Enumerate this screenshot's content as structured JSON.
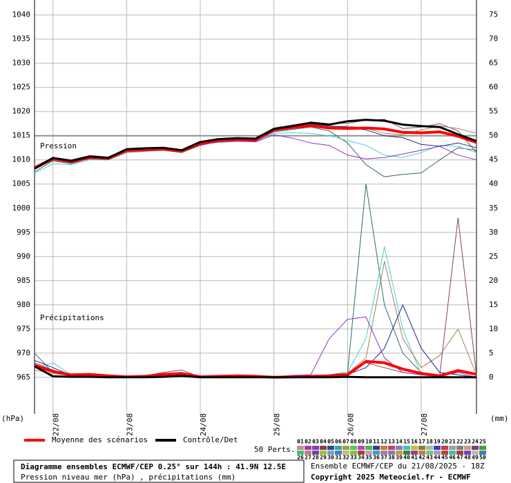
{
  "chart_data": {
    "type": "line",
    "title": "Diagramme ensembles ECMWF/CEP 0.25° sur 144h : 41.9N 12.5E",
    "subtitle": "Pression niveau mer (hPa) , précipitations (mm)",
    "run_label": "Ensemble ECMWF/CEP du 21/08/2025 - 18Z",
    "copyright": "Copyright 2025 Meteociel.fr - ECMWF",
    "ylabel": "(hPa)",
    "y2label": "(mm)",
    "annotations": [
      "Pression",
      "Précipitations"
    ],
    "perts_label": "50 Perts.",
    "grid": true,
    "reference_line": 1015,
    "x": [
      0,
      6,
      12,
      18,
      24,
      30,
      36,
      42,
      48,
      54,
      60,
      66,
      72,
      78,
      84,
      90,
      96,
      102,
      108,
      114,
      120,
      126,
      132,
      138,
      144
    ],
    "xlim": [
      0,
      144
    ],
    "xticks": [
      {
        "value": 6,
        "label": "22/08"
      },
      {
        "value": 30,
        "label": "23/08"
      },
      {
        "value": 54,
        "label": "24/08"
      },
      {
        "value": 78,
        "label": "25/08"
      },
      {
        "value": 102,
        "label": "26/08"
      },
      {
        "value": 126,
        "label": "27/08"
      }
    ],
    "ylim": [
      957.4,
      1043.1
    ],
    "yticks": [
      965,
      970,
      975,
      980,
      985,
      990,
      995,
      1000,
      1005,
      1010,
      1015,
      1020,
      1025,
      1030,
      1035,
      1040
    ],
    "y2lim": [
      -7.6,
      78.1
    ],
    "y2ticks": [
      0,
      5,
      10,
      15,
      20,
      25,
      30,
      35,
      40,
      45,
      50,
      55,
      60,
      65,
      70,
      75
    ],
    "series": [
      {
        "name": "04",
        "color": "#336666",
        "width": 1,
        "values": [
          1007.5,
          1009.8,
          1009.2,
          1010.3,
          1010.0,
          1011.5,
          1011.8,
          1012.0,
          1011.5,
          1013.0,
          1013.8,
          1014.0,
          1013.9,
          1015.8,
          1016.3,
          1016.8,
          1016.0,
          1013.5,
          1009.0,
          1006.5,
          1007.0,
          1007.3,
          1010.0,
          1012.5,
          1012.0
        ],
        "precip": [
          5,
          1,
          0.5,
          0.3,
          0.2,
          0,
          0,
          0.5,
          1,
          0,
          0,
          0.3,
          0,
          0,
          0.2,
          0.3,
          0.5,
          1,
          40,
          15,
          5,
          1,
          0.3,
          0,
          0
        ]
      },
      {
        "name": "37",
        "color": "#804060",
        "width": 1,
        "values": [
          1008.6,
          1010.5,
          1010.0,
          1010.9,
          1010.6,
          1012.3,
          1012.5,
          1012.6,
          1012.1,
          1013.8,
          1014.4,
          1014.6,
          1014.5,
          1016.6,
          1017.2,
          1017.8,
          1017.5,
          1017.6,
          1018.2,
          1018.4,
          1016.5,
          1016.8,
          1017.5,
          1016.0,
          1011.5
        ],
        "precip": [
          3,
          1.5,
          0.5,
          0.3,
          0.2,
          0.1,
          0.3,
          1,
          1.5,
          0,
          0.2,
          0.5,
          0.3,
          0,
          0,
          0.2,
          0.5,
          1,
          3,
          2,
          1,
          0.5,
          0.3,
          33,
          0.5
        ]
      },
      {
        "name": "12",
        "color": "#40d0d0",
        "width": 1,
        "values": [
          1007.2,
          1009.2,
          1009.0,
          1010.0,
          1010.0,
          1011.5,
          1011.9,
          1012.3,
          1011.5,
          1013.2,
          1013.6,
          1013.8,
          1013.8,
          1015.5,
          1015.6,
          1015.5,
          1015.0,
          1014.0,
          1013.0,
          1011.0,
          1010.5,
          1011.5,
          1013.0,
          1012.8,
          1011.5
        ],
        "precip": [
          2,
          3,
          0.5,
          0.2,
          0.1,
          0,
          0.4,
          0.6,
          0.5,
          0.1,
          0.3,
          0.4,
          0.1,
          0,
          0.3,
          0.4,
          0.2,
          1,
          8,
          27,
          10,
          0.5,
          0,
          0,
          0
        ]
      },
      {
        "name": "08",
        "color": "#a08050",
        "width": 1,
        "values": [
          1008.0,
          1010.0,
          1009.5,
          1010.6,
          1010.5,
          1012.0,
          1012.3,
          1012.4,
          1012.0,
          1013.5,
          1014.2,
          1014.5,
          1014.2,
          1016.0,
          1016.5,
          1016.9,
          1016.8,
          1017.0,
          1016.5,
          1015.5,
          1015.2,
          1016.2,
          1017.0,
          1016.5,
          1015.5
        ],
        "precip": [
          1.5,
          0.8,
          0.3,
          0.2,
          0.1,
          0,
          0.1,
          0.3,
          0.4,
          0,
          0.1,
          0.2,
          0.1,
          0,
          0,
          0.1,
          0.3,
          0.8,
          4,
          24,
          8,
          2,
          4.5,
          10,
          0.5
        ]
      },
      {
        "name": "21",
        "color": "#202080",
        "width": 1,
        "values": [
          1008.4,
          1010.3,
          1009.7,
          1010.4,
          1010.2,
          1011.8,
          1012.0,
          1012.1,
          1011.6,
          1013.3,
          1014.1,
          1014.3,
          1014.2,
          1016.1,
          1016.8,
          1017.4,
          1017.0,
          1016.8,
          1016.2,
          1015.0,
          1014.6,
          1013.2,
          1012.8,
          1013.5,
          1012.5
        ],
        "precip": [
          3.5,
          2,
          0.4,
          0.3,
          0.1,
          0,
          0.2,
          0.8,
          0.9,
          0,
          0.1,
          0.3,
          0.1,
          0,
          0.2,
          0.2,
          0.4,
          0.6,
          2,
          6,
          15,
          6,
          1,
          0.5,
          0
        ]
      },
      {
        "name": "44",
        "color": "#9030c0",
        "width": 1,
        "values": [
          1008.1,
          1010.1,
          1009.4,
          1010.2,
          1010.1,
          1011.7,
          1012.0,
          1012.1,
          1011.6,
          1013.1,
          1013.7,
          1013.9,
          1013.7,
          1015.2,
          1014.5,
          1013.5,
          1013.0,
          1011.0,
          1010.2,
          1010.5,
          1011.2,
          1012.0,
          1012.8,
          1011.0,
          1010.0
        ],
        "precip": [
          2,
          1,
          0.4,
          0.3,
          0.2,
          0.1,
          0.2,
          0.4,
          0.7,
          0.1,
          0.2,
          0.3,
          0.2,
          0.1,
          0.4,
          0.5,
          8,
          12,
          12.5,
          4,
          1,
          0.5,
          0.2,
          1,
          0
        ]
      },
      {
        "name": "Moyenne des scénarios",
        "color": "#ff0000",
        "width": 4,
        "legend": true,
        "values": [
          1008.3,
          1010.2,
          1009.6,
          1010.5,
          1010.3,
          1011.9,
          1012.1,
          1012.2,
          1011.8,
          1013.4,
          1014.0,
          1014.2,
          1014.1,
          1016.2,
          1016.7,
          1017.1,
          1016.6,
          1016.5,
          1016.6,
          1016.4,
          1015.7,
          1015.6,
          1015.8,
          1014.9,
          1013.6
        ],
        "precip": [
          2.5,
          1.2,
          0.5,
          0.6,
          0.3,
          0.1,
          0.2,
          0.6,
          0.8,
          0.1,
          0.2,
          0.3,
          0.2,
          0,
          0.1,
          0.2,
          0.3,
          0.5,
          3.3,
          3.0,
          1.7,
          0.8,
          0.3,
          1.4,
          0.6
        ]
      },
      {
        "name": "Contrôle/Det",
        "color": "#000000",
        "width": 3,
        "legend": true,
        "values": [
          1008.2,
          1010.4,
          1009.8,
          1010.7,
          1010.4,
          1012.2,
          1012.4,
          1012.5,
          1012.0,
          1013.7,
          1014.3,
          1014.5,
          1014.4,
          1016.4,
          1017.0,
          1017.7,
          1017.3,
          1018.0,
          1018.3,
          1018.1,
          1017.3,
          1017.0,
          1016.8,
          1015.3,
          1013.9
        ],
        "precip": [
          2.3,
          0.2,
          0.1,
          0.1,
          0,
          0,
          0,
          0.1,
          0.3,
          0,
          0,
          0,
          0,
          0,
          0,
          0,
          0,
          0.1,
          0,
          0,
          0,
          0,
          0,
          0,
          0
        ]
      }
    ],
    "perturbations": [
      {
        "name": "01",
        "color": "#c09090"
      },
      {
        "name": "02",
        "color": "#a040a0"
      },
      {
        "name": "03",
        "color": "#8040c0"
      },
      {
        "name": "04",
        "color": "#904040"
      },
      {
        "name": "05",
        "color": "#205090"
      },
      {
        "name": "06",
        "color": "#40a0a0"
      },
      {
        "name": "07",
        "color": "#a0a040"
      },
      {
        "name": "08",
        "color": "#60c060"
      },
      {
        "name": "09",
        "color": "#c040c0"
      },
      {
        "name": "10",
        "color": "#40c040"
      },
      {
        "name": "11",
        "color": "#404080"
      },
      {
        "name": "12",
        "color": "#c08040"
      },
      {
        "name": "13",
        "color": "#c04080"
      },
      {
        "name": "14",
        "color": "#8080c0"
      },
      {
        "name": "15",
        "color": "#40c0c0"
      },
      {
        "name": "16",
        "color": "#c0c040"
      },
      {
        "name": "17",
        "color": "#808040"
      },
      {
        "name": "18",
        "color": "#a0c0a0"
      },
      {
        "name": "19",
        "color": "#4040c0"
      },
      {
        "name": "20",
        "color": "#c04040"
      },
      {
        "name": "21",
        "color": "#a0a0a0"
      },
      {
        "name": "22",
        "color": "#808080"
      },
      {
        "name": "23",
        "color": "#c0a080"
      },
      {
        "name": "24",
        "color": "#804080"
      },
      {
        "name": "25",
        "color": "#40a040"
      },
      {
        "name": "26",
        "color": "#40c080"
      },
      {
        "name": "27",
        "color": "#c08080"
      },
      {
        "name": "28",
        "color": "#8040a0"
      },
      {
        "name": "29",
        "color": "#a0c040"
      },
      {
        "name": "30",
        "color": "#80a0c0"
      },
      {
        "name": "31",
        "color": "#4080c0"
      },
      {
        "name": "32",
        "color": "#c0c080"
      },
      {
        "name": "33",
        "color": "#80c040"
      },
      {
        "name": "34",
        "color": "#a04040"
      },
      {
        "name": "35",
        "color": "#c0a0c0"
      },
      {
        "name": "36",
        "color": "#40a0c0"
      },
      {
        "name": "37",
        "color": "#a080a0"
      },
      {
        "name": "38",
        "color": "#8080a0"
      },
      {
        "name": "39",
        "color": "#c0a040"
      },
      {
        "name": "40",
        "color": "#408040"
      },
      {
        "name": "41",
        "color": "#a04080"
      },
      {
        "name": "42",
        "color": "#c08040"
      },
      {
        "name": "43",
        "color": "#80c080"
      },
      {
        "name": "44",
        "color": "#a0a0c0"
      },
      {
        "name": "45",
        "color": "#c04040"
      },
      {
        "name": "46",
        "color": "#40c0a0"
      },
      {
        "name": "47",
        "color": "#a04040"
      },
      {
        "name": "48",
        "color": "#8040c0"
      },
      {
        "name": "49",
        "color": "#c0c0a0"
      },
      {
        "name": "50",
        "color": "#4080a0"
      }
    ]
  }
}
